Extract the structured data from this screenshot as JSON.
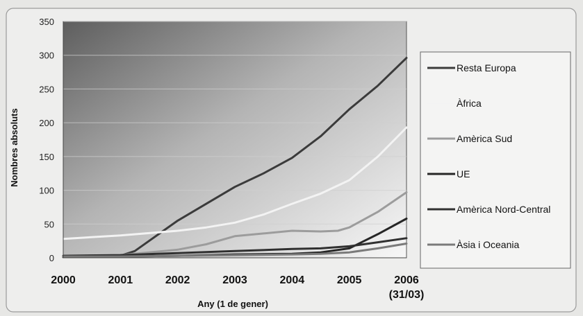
{
  "chart_data": {
    "type": "line",
    "xlabel": "Any (1 de gener)",
    "ylabel": "Nombres absoluts",
    "ylim": [
      0,
      350
    ],
    "y_ticks": [
      0,
      50,
      100,
      150,
      200,
      250,
      300,
      350
    ],
    "x_tick_labels": [
      {
        "line1": "2000",
        "line2": ""
      },
      {
        "line1": "2001",
        "line2": ""
      },
      {
        "line1": "2002",
        "line2": ""
      },
      {
        "line1": "2003",
        "line2": ""
      },
      {
        "line1": "2004",
        "line2": ""
      },
      {
        "line1": "2005",
        "line2": ""
      },
      {
        "line1": "2006",
        "line2": "(31/03)"
      }
    ],
    "legend_position": "right",
    "grid": true,
    "series": [
      {
        "name": "Resta Europa",
        "color": "#3b3b3b",
        "points": [
          [
            2000,
            2
          ],
          [
            2001,
            3
          ],
          [
            2001.25,
            10
          ],
          [
            2002,
            55
          ],
          [
            2002.5,
            80
          ],
          [
            2003,
            105
          ],
          [
            2003.5,
            125
          ],
          [
            2004,
            148
          ],
          [
            2004.5,
            180
          ],
          [
            2005,
            220
          ],
          [
            2005.5,
            255
          ],
          [
            2006,
            296
          ]
        ]
      },
      {
        "name": "Àfrica",
        "color": "#f3f3f3",
        "points": [
          [
            2000,
            28
          ],
          [
            2001,
            33
          ],
          [
            2002,
            40
          ],
          [
            2002.5,
            45
          ],
          [
            2003,
            52
          ],
          [
            2003.5,
            64
          ],
          [
            2004,
            80
          ],
          [
            2004.5,
            95
          ],
          [
            2005,
            115
          ],
          [
            2005.5,
            150
          ],
          [
            2006,
            193
          ]
        ]
      },
      {
        "name": "Amèrica Sud",
        "color": "#9c9c9c",
        "points": [
          [
            2000,
            2
          ],
          [
            2001,
            4
          ],
          [
            2002,
            12
          ],
          [
            2002.5,
            20
          ],
          [
            2003,
            32
          ],
          [
            2003.5,
            36
          ],
          [
            2004,
            40
          ],
          [
            2004.5,
            39
          ],
          [
            2004.8,
            40
          ],
          [
            2005,
            45
          ],
          [
            2005.5,
            68
          ],
          [
            2006,
            97
          ]
        ]
      },
      {
        "name": "UE",
        "color": "#262626",
        "points": [
          [
            2000,
            1
          ],
          [
            2001,
            2
          ],
          [
            2002,
            3
          ],
          [
            2003,
            5
          ],
          [
            2004,
            6
          ],
          [
            2004.5,
            8
          ],
          [
            2005,
            14
          ],
          [
            2005.5,
            35
          ],
          [
            2006,
            58
          ]
        ]
      },
      {
        "name": "Amèrica Nord-Central",
        "color": "#303030",
        "points": [
          [
            2000,
            3
          ],
          [
            2001,
            4
          ],
          [
            2002,
            7
          ],
          [
            2003,
            10
          ],
          [
            2004,
            13
          ],
          [
            2004.5,
            14
          ],
          [
            2005,
            17
          ],
          [
            2005.5,
            23
          ],
          [
            2006,
            29
          ]
        ]
      },
      {
        "name": "Àsia i Oceania",
        "color": "#7a7a7a",
        "points": [
          [
            2000,
            2
          ],
          [
            2001,
            2
          ],
          [
            2002,
            3
          ],
          [
            2003,
            4
          ],
          [
            2004,
            5
          ],
          [
            2004.5,
            6
          ],
          [
            2005,
            8
          ],
          [
            2005.5,
            14
          ],
          [
            2006,
            21
          ]
        ]
      }
    ]
  }
}
